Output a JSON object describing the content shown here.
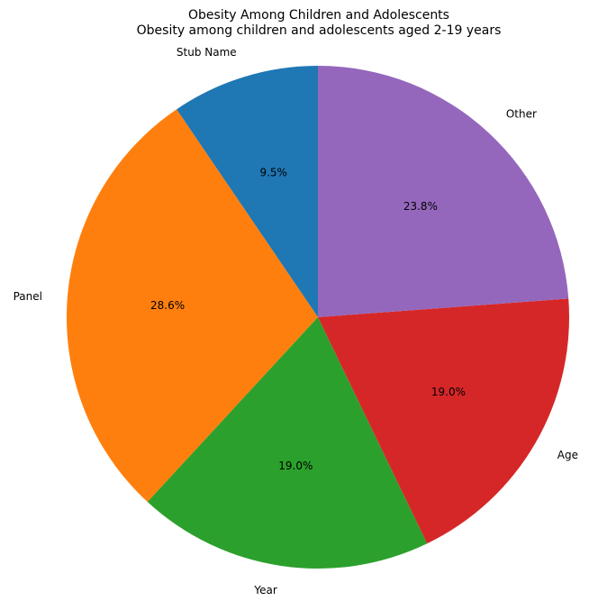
{
  "chart_data": {
    "type": "pie",
    "title": "Obesity Among Children and Adolescents",
    "subtitle": "Obesity among children and adolescents aged 2-19 years",
    "start_angle_deg": 90,
    "direction": "counterclockwise",
    "slices": [
      {
        "label": "Stub Name",
        "value": 9.5,
        "pct_label": "9.5%",
        "color": "#1f77b4"
      },
      {
        "label": "Panel",
        "value": 28.6,
        "pct_label": "28.6%",
        "color": "#ff7f0e"
      },
      {
        "label": "Year",
        "value": 19.0,
        "pct_label": "19.0%",
        "color": "#2ca02c"
      },
      {
        "label": "Age",
        "value": 19.0,
        "pct_label": "19.0%",
        "color": "#d62728"
      },
      {
        "label": "Other",
        "value": 23.8,
        "pct_label": "23.8%",
        "color": "#9467bd"
      }
    ]
  }
}
